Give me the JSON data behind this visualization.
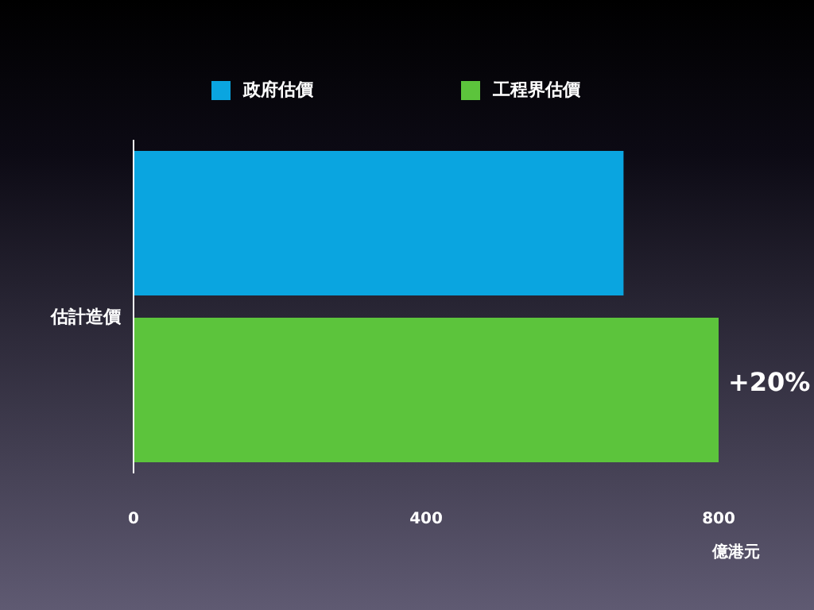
{
  "chart_data": {
    "type": "bar",
    "orientation": "horizontal",
    "categories": [
      null,
      null
    ],
    "ylabel": "估計造價",
    "series": [
      {
        "name": "政府估價",
        "color": "#0aa5e0",
        "values": [
          670,
          null
        ]
      },
      {
        "name": "工程界估價",
        "color": "#5cc43c",
        "values": [
          null,
          800
        ]
      }
    ],
    "xlim": [
      0,
      800
    ],
    "xticks": [
      0,
      400,
      800
    ],
    "xlabel": "億港元",
    "legend": "top",
    "annotations": [
      {
        "text": "+20%",
        "x": 800
      }
    ]
  }
}
